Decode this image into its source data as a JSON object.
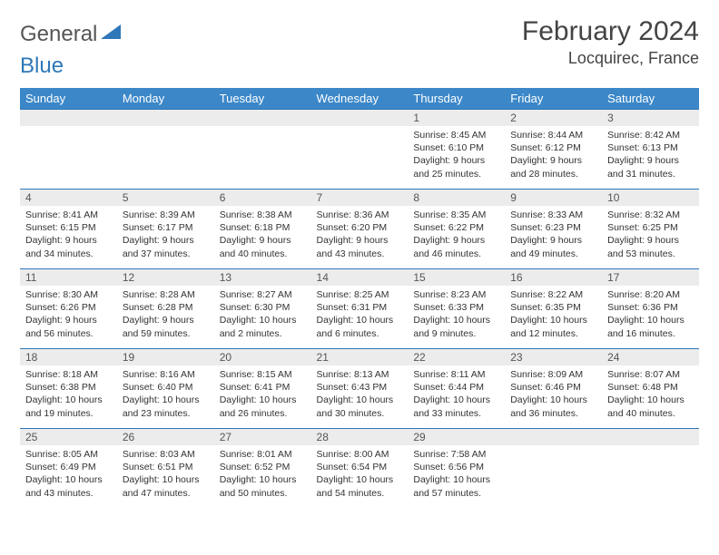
{
  "brand": {
    "part1": "General",
    "part2": "Blue"
  },
  "title": "February 2024",
  "location": "Locquirec, France",
  "colors": {
    "header_bg": "#3b87c8",
    "header_text": "#ffffff",
    "daynum_bg": "#ececec",
    "border": "#2e77b8",
    "text": "#333333",
    "logo_gray": "#555555",
    "logo_blue": "#2e77b8"
  },
  "day_labels": [
    "Sunday",
    "Monday",
    "Tuesday",
    "Wednesday",
    "Thursday",
    "Friday",
    "Saturday"
  ],
  "weeks": [
    [
      {
        "n": "",
        "sunrise": "",
        "sunset": "",
        "daylight": ""
      },
      {
        "n": "",
        "sunrise": "",
        "sunset": "",
        "daylight": ""
      },
      {
        "n": "",
        "sunrise": "",
        "sunset": "",
        "daylight": ""
      },
      {
        "n": "",
        "sunrise": "",
        "sunset": "",
        "daylight": ""
      },
      {
        "n": "1",
        "sunrise": "Sunrise: 8:45 AM",
        "sunset": "Sunset: 6:10 PM",
        "daylight": "Daylight: 9 hours and 25 minutes."
      },
      {
        "n": "2",
        "sunrise": "Sunrise: 8:44 AM",
        "sunset": "Sunset: 6:12 PM",
        "daylight": "Daylight: 9 hours and 28 minutes."
      },
      {
        "n": "3",
        "sunrise": "Sunrise: 8:42 AM",
        "sunset": "Sunset: 6:13 PM",
        "daylight": "Daylight: 9 hours and 31 minutes."
      }
    ],
    [
      {
        "n": "4",
        "sunrise": "Sunrise: 8:41 AM",
        "sunset": "Sunset: 6:15 PM",
        "daylight": "Daylight: 9 hours and 34 minutes."
      },
      {
        "n": "5",
        "sunrise": "Sunrise: 8:39 AM",
        "sunset": "Sunset: 6:17 PM",
        "daylight": "Daylight: 9 hours and 37 minutes."
      },
      {
        "n": "6",
        "sunrise": "Sunrise: 8:38 AM",
        "sunset": "Sunset: 6:18 PM",
        "daylight": "Daylight: 9 hours and 40 minutes."
      },
      {
        "n": "7",
        "sunrise": "Sunrise: 8:36 AM",
        "sunset": "Sunset: 6:20 PM",
        "daylight": "Daylight: 9 hours and 43 minutes."
      },
      {
        "n": "8",
        "sunrise": "Sunrise: 8:35 AM",
        "sunset": "Sunset: 6:22 PM",
        "daylight": "Daylight: 9 hours and 46 minutes."
      },
      {
        "n": "9",
        "sunrise": "Sunrise: 8:33 AM",
        "sunset": "Sunset: 6:23 PM",
        "daylight": "Daylight: 9 hours and 49 minutes."
      },
      {
        "n": "10",
        "sunrise": "Sunrise: 8:32 AM",
        "sunset": "Sunset: 6:25 PM",
        "daylight": "Daylight: 9 hours and 53 minutes."
      }
    ],
    [
      {
        "n": "11",
        "sunrise": "Sunrise: 8:30 AM",
        "sunset": "Sunset: 6:26 PM",
        "daylight": "Daylight: 9 hours and 56 minutes."
      },
      {
        "n": "12",
        "sunrise": "Sunrise: 8:28 AM",
        "sunset": "Sunset: 6:28 PM",
        "daylight": "Daylight: 9 hours and 59 minutes."
      },
      {
        "n": "13",
        "sunrise": "Sunrise: 8:27 AM",
        "sunset": "Sunset: 6:30 PM",
        "daylight": "Daylight: 10 hours and 2 minutes."
      },
      {
        "n": "14",
        "sunrise": "Sunrise: 8:25 AM",
        "sunset": "Sunset: 6:31 PM",
        "daylight": "Daylight: 10 hours and 6 minutes."
      },
      {
        "n": "15",
        "sunrise": "Sunrise: 8:23 AM",
        "sunset": "Sunset: 6:33 PM",
        "daylight": "Daylight: 10 hours and 9 minutes."
      },
      {
        "n": "16",
        "sunrise": "Sunrise: 8:22 AM",
        "sunset": "Sunset: 6:35 PM",
        "daylight": "Daylight: 10 hours and 12 minutes."
      },
      {
        "n": "17",
        "sunrise": "Sunrise: 8:20 AM",
        "sunset": "Sunset: 6:36 PM",
        "daylight": "Daylight: 10 hours and 16 minutes."
      }
    ],
    [
      {
        "n": "18",
        "sunrise": "Sunrise: 8:18 AM",
        "sunset": "Sunset: 6:38 PM",
        "daylight": "Daylight: 10 hours and 19 minutes."
      },
      {
        "n": "19",
        "sunrise": "Sunrise: 8:16 AM",
        "sunset": "Sunset: 6:40 PM",
        "daylight": "Daylight: 10 hours and 23 minutes."
      },
      {
        "n": "20",
        "sunrise": "Sunrise: 8:15 AM",
        "sunset": "Sunset: 6:41 PM",
        "daylight": "Daylight: 10 hours and 26 minutes."
      },
      {
        "n": "21",
        "sunrise": "Sunrise: 8:13 AM",
        "sunset": "Sunset: 6:43 PM",
        "daylight": "Daylight: 10 hours and 30 minutes."
      },
      {
        "n": "22",
        "sunrise": "Sunrise: 8:11 AM",
        "sunset": "Sunset: 6:44 PM",
        "daylight": "Daylight: 10 hours and 33 minutes."
      },
      {
        "n": "23",
        "sunrise": "Sunrise: 8:09 AM",
        "sunset": "Sunset: 6:46 PM",
        "daylight": "Daylight: 10 hours and 36 minutes."
      },
      {
        "n": "24",
        "sunrise": "Sunrise: 8:07 AM",
        "sunset": "Sunset: 6:48 PM",
        "daylight": "Daylight: 10 hours and 40 minutes."
      }
    ],
    [
      {
        "n": "25",
        "sunrise": "Sunrise: 8:05 AM",
        "sunset": "Sunset: 6:49 PM",
        "daylight": "Daylight: 10 hours and 43 minutes."
      },
      {
        "n": "26",
        "sunrise": "Sunrise: 8:03 AM",
        "sunset": "Sunset: 6:51 PM",
        "daylight": "Daylight: 10 hours and 47 minutes."
      },
      {
        "n": "27",
        "sunrise": "Sunrise: 8:01 AM",
        "sunset": "Sunset: 6:52 PM",
        "daylight": "Daylight: 10 hours and 50 minutes."
      },
      {
        "n": "28",
        "sunrise": "Sunrise: 8:00 AM",
        "sunset": "Sunset: 6:54 PM",
        "daylight": "Daylight: 10 hours and 54 minutes."
      },
      {
        "n": "29",
        "sunrise": "Sunrise: 7:58 AM",
        "sunset": "Sunset: 6:56 PM",
        "daylight": "Daylight: 10 hours and 57 minutes."
      },
      {
        "n": "",
        "sunrise": "",
        "sunset": "",
        "daylight": ""
      },
      {
        "n": "",
        "sunrise": "",
        "sunset": "",
        "daylight": ""
      }
    ]
  ]
}
